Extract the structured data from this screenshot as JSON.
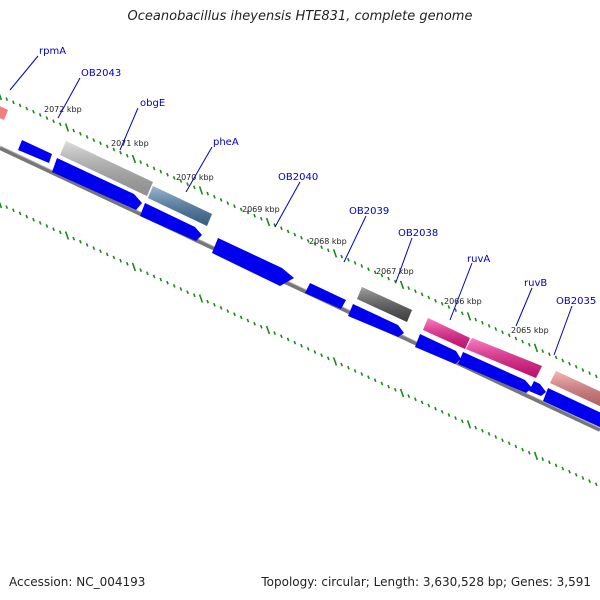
{
  "title": "Oceanobacillus iheyensis HTE831, complete genome",
  "footer": {
    "accession": "Accession: NC_004193",
    "topology": "Topology: circular; Length: 3,630,528 bp; Genes: 3,591"
  },
  "colors": {
    "backbone": "#777777",
    "tick": "#1a8a1a",
    "gene_blue": "#0000ee",
    "gene_pink": "#ff1493",
    "gene_salmon": "#f08080",
    "gene_gray_light": "#c0c0c0",
    "gene_gray_dark": "#555555",
    "gene_steel": "#4a7fb0",
    "label": "#0000c0"
  },
  "kbp_ticks": [
    "2072 kbp",
    "2071 kbp",
    "2070 kbp",
    "2069 kbp",
    "2068 kbp",
    "2067 kbp",
    "2066 kbp",
    "2065 kbp"
  ],
  "gene_labels": [
    "rpmA",
    "OB2043",
    "obgE",
    "pheA",
    "OB2040",
    "OB2039",
    "OB2038",
    "ruvA",
    "ruvB",
    "OB2035"
  ]
}
